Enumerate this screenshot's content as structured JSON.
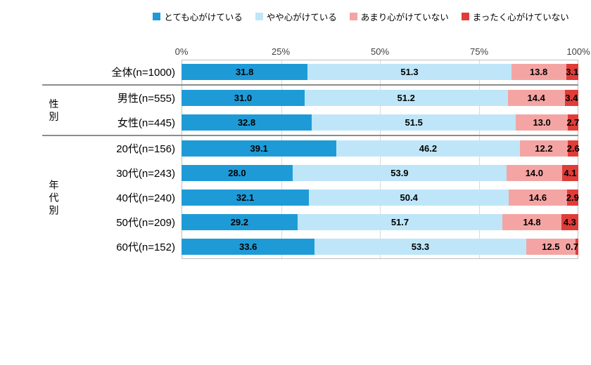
{
  "chart_data": {
    "type": "bar",
    "variant": "horizontal-stacked-100pct",
    "legend_position": "top",
    "series": [
      "とても心がけている",
      "やや心がけている",
      "あまり心がけていない",
      "まったく心がけていない"
    ],
    "series_colors": [
      "#1E9BD7",
      "#BEE6F8",
      "#F4A5A3",
      "#E03C38"
    ],
    "x_axis": {
      "ticks": [
        0,
        25,
        50,
        75,
        100
      ],
      "unit": "%",
      "position": "top",
      "range": [
        0,
        100
      ]
    },
    "grid": true,
    "groups": [
      {
        "label": "",
        "rows": [
          {
            "category": "全体(n=1000)",
            "values": [
              31.8,
              51.3,
              13.8,
              3.1
            ]
          }
        ]
      },
      {
        "label": "性別",
        "rows": [
          {
            "category": "男性(n=555)",
            "values": [
              31.0,
              51.2,
              14.4,
              3.4
            ]
          },
          {
            "category": "女性(n=445)",
            "values": [
              32.8,
              51.5,
              13.0,
              2.7
            ]
          }
        ]
      },
      {
        "label": "年代別",
        "rows": [
          {
            "category": "20代(n=156)",
            "values": [
              39.1,
              46.2,
              12.2,
              2.6
            ]
          },
          {
            "category": "30代(n=243)",
            "values": [
              28.0,
              53.9,
              14.0,
              4.1
            ]
          },
          {
            "category": "40代(n=240)",
            "values": [
              32.1,
              50.4,
              14.6,
              2.9
            ]
          },
          {
            "category": "50代(n=209)",
            "values": [
              29.2,
              51.7,
              14.8,
              4.3
            ]
          },
          {
            "category": "60代(n=152)",
            "values": [
              33.6,
              53.3,
              12.5,
              0.7
            ]
          }
        ]
      }
    ]
  }
}
